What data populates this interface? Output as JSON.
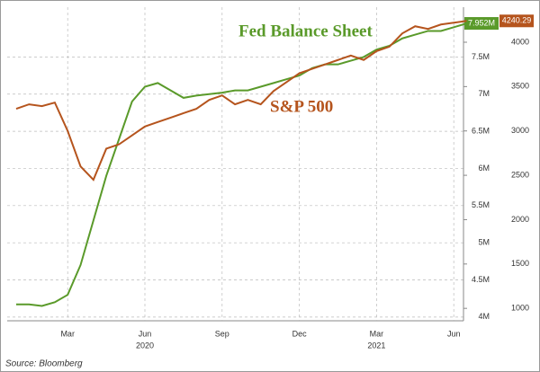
{
  "chart_data": {
    "type": "line",
    "source": "Source: Bloomberg",
    "categories": [
      null,
      null,
      null,
      null,
      "Mar",
      null,
      null,
      null,
      null,
      null,
      "Jun",
      null,
      null,
      null,
      null,
      null,
      "Sep",
      null,
      null,
      null,
      null,
      null,
      "Dec",
      null,
      null,
      null,
      null,
      null,
      "Mar",
      null,
      null,
      null,
      null,
      null,
      "Jun",
      null
    ],
    "year_labels": [
      "2020",
      "2021"
    ],
    "series": [
      {
        "name": "Fed Balance Sheet",
        "color": "#5a9a2a",
        "axis": "y",
        "values": [
          4.17,
          4.17,
          4.15,
          4.2,
          4.3,
          4.7,
          5.3,
          5.9,
          6.4,
          6.9,
          7.1,
          7.15,
          7.05,
          6.95,
          6.98,
          7.0,
          7.02,
          7.05,
          7.05,
          7.1,
          7.15,
          7.2,
          7.25,
          7.35,
          7.4,
          7.4,
          7.45,
          7.5,
          7.6,
          7.65,
          7.75,
          7.8,
          7.85,
          7.85,
          7.9,
          7.952
        ],
        "value_labels": [
          null,
          null,
          null,
          null,
          null,
          null,
          null,
          null,
          null,
          null,
          null,
          null,
          null,
          null,
          null,
          null,
          null,
          null,
          null,
          null,
          null,
          null,
          null,
          null,
          null,
          null,
          null,
          null,
          null,
          null,
          null,
          null,
          null,
          null,
          null,
          "7.952M"
        ]
      },
      {
        "name": "S&P 500",
        "color": "#b5541d",
        "axis": "y2",
        "values": [
          3250,
          3300,
          3280,
          3320,
          3000,
          2600,
          2450,
          2800,
          2850,
          2950,
          3050,
          3100,
          3150,
          3200,
          3250,
          3350,
          3400,
          3300,
          3350,
          3300,
          3450,
          3550,
          3650,
          3700,
          3750,
          3800,
          3850,
          3800,
          3900,
          3950,
          4100,
          4180,
          4150,
          4200,
          4220,
          4240.29
        ]
      }
    ],
    "ylim": [
      3.95,
      8.17
    ],
    "yticks": [
      {
        "value": 4,
        "label": "4M"
      },
      {
        "value": 4.5,
        "label": "4.5M"
      },
      {
        "value": 5,
        "label": "5M"
      },
      {
        "value": 5.5,
        "label": "5.5M"
      },
      {
        "value": 6,
        "label": "6M"
      },
      {
        "value": 6.5,
        "label": "6.5M"
      },
      {
        "value": 7,
        "label": "7M"
      },
      {
        "value": 7.5,
        "label": "7.5M"
      }
    ],
    "y2lim": [
      860,
      4395
    ],
    "y2ticks": [
      1000,
      1500,
      2000,
      2500,
      3000,
      3500,
      4000
    ],
    "grid": true
  }
}
